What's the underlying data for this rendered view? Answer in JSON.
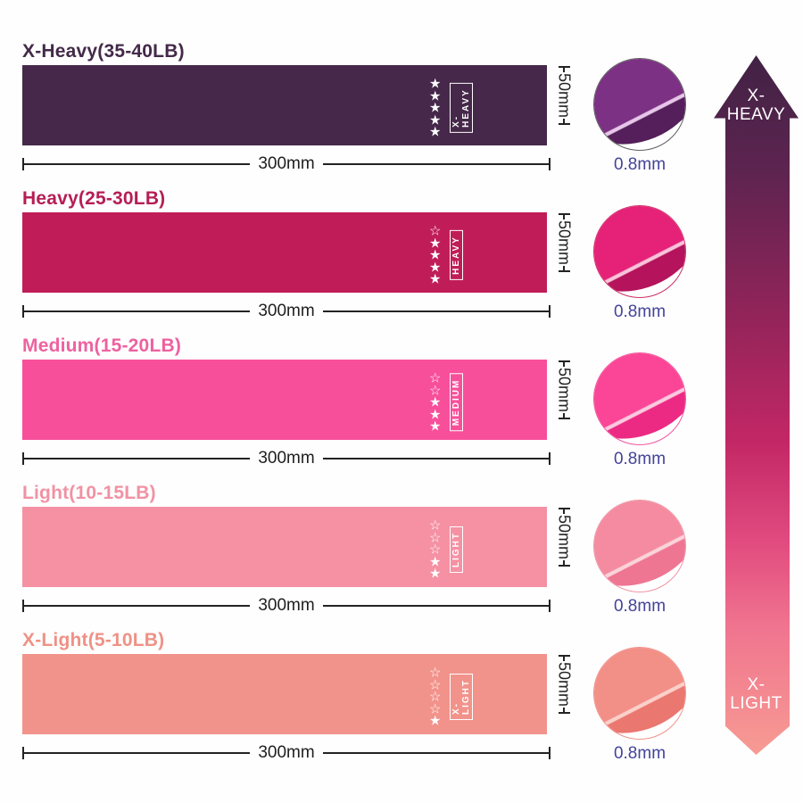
{
  "page": {
    "background": "#ffffff",
    "dimension_color": "#232323",
    "thickness_text_color": "#43439a"
  },
  "bands": [
    {
      "title": "X-Heavy(35-40LB)",
      "label": "X-HEAVY",
      "rating": 5,
      "stars": "★\n★\n★\n★\n★",
      "width": "300mm",
      "height": "50mm",
      "thickness": "0.8mm",
      "band_color": "#46284a",
      "title_color": "#432a49",
      "photo_main": "#7c3184",
      "photo_dark": "#541f5a",
      "photo_edge": "#e7c7e9",
      "photo_border": "#5f5f5f"
    },
    {
      "title": "Heavy(25-30LB)",
      "label": "HEAVY",
      "rating": 4,
      "stars": "☆\n★\n★\n★\n★",
      "width": "300mm",
      "height": "50mm",
      "thickness": "0.8mm",
      "band_color": "#c01d58",
      "title_color": "#b51e55",
      "photo_main": "#e62178",
      "photo_dark": "#b5135c",
      "photo_edge": "#f9c3da",
      "photo_border": "#cf2f67"
    },
    {
      "title": "Medium(15-20LB)",
      "label": "MEDIUM",
      "rating": 3,
      "stars": "☆\n☆\n★\n★\n★",
      "width": "300mm",
      "height": "50mm",
      "thickness": "0.8mm",
      "band_color": "#f84f9b",
      "title_color": "#ee619f",
      "photo_main": "#fb4596",
      "photo_dark": "#ec2a84",
      "photo_edge": "#fdc9e0",
      "photo_border": "#f0589d"
    },
    {
      "title": "Light(10-15LB)",
      "label": "LIGHT",
      "rating": 2,
      "stars": "☆\n☆\n☆\n★\n★",
      "width": "300mm",
      "height": "50mm",
      "thickness": "0.8mm",
      "band_color": "#f591a3",
      "title_color": "#f192a4",
      "photo_main": "#f48ba0",
      "photo_dark": "#ee7693",
      "photo_edge": "#fbd3da",
      "photo_border": "#f095a3"
    },
    {
      "title": "X-Light(5-10LB)",
      "label": "X-LIGHT",
      "rating": 1,
      "stars": "☆\n☆\n☆\n☆\n★",
      "width": "300mm",
      "height": "50mm",
      "thickness": "0.8mm",
      "band_color": "#f2938b",
      "title_color": "#ef9186",
      "photo_main": "#f28f87",
      "photo_dark": "#ea7770",
      "photo_edge": "#fbd0ca",
      "photo_border": "#ef938b"
    }
  ],
  "gradient_arrow": {
    "top_label": "X-\nHEAVY",
    "bottom_label": "X-\nLIGHT",
    "gradient_top": "#412244",
    "gradient_middle": "#c22765",
    "gradient_bottom": "#f79b93"
  }
}
